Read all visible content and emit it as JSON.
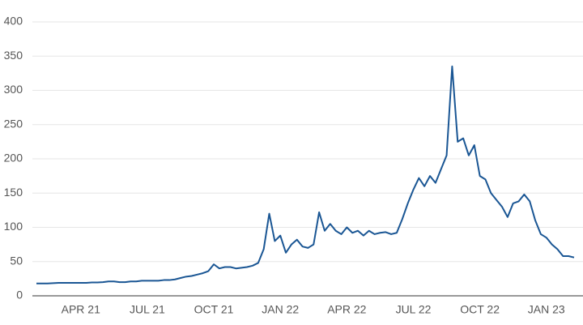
{
  "chart_data": {
    "type": "line",
    "categories": [
      null,
      null,
      null,
      null,
      null,
      null,
      null,
      null,
      "APR 21",
      null,
      null,
      null,
      null,
      null,
      null,
      null,
      null,
      null,
      null,
      null,
      "JUL 21",
      null,
      null,
      null,
      null,
      null,
      null,
      null,
      null,
      null,
      null,
      null,
      "OCT 21",
      null,
      null,
      null,
      null,
      null,
      null,
      null,
      null,
      null,
      null,
      null,
      "JAN 22",
      null,
      null,
      null,
      null,
      null,
      null,
      null,
      null,
      null,
      null,
      null,
      "APR 22",
      null,
      null,
      null,
      null,
      null,
      null,
      null,
      null,
      null,
      null,
      null,
      "JUL 22",
      null,
      null,
      null,
      null,
      null,
      null,
      null,
      null,
      null,
      null,
      null,
      "OCT 22",
      null,
      null,
      null,
      null,
      null,
      null,
      null,
      null,
      null,
      null,
      null,
      "JAN 23",
      null,
      null,
      null,
      null,
      null
    ],
    "values": [
      18,
      18,
      18,
      18.5,
      19,
      19,
      19,
      19,
      19,
      19,
      19.5,
      19.5,
      20,
      21,
      21,
      20,
      20,
      21,
      21,
      22,
      22,
      22,
      22,
      23,
      23,
      24,
      26,
      28,
      29,
      31,
      33,
      36,
      46,
      40,
      42,
      42,
      40,
      41,
      42,
      44,
      48,
      68,
      120,
      80,
      88,
      63,
      75,
      82,
      72,
      70,
      75,
      122,
      95,
      105,
      95,
      90,
      100,
      92,
      95,
      88,
      95,
      90,
      92,
      93,
      90,
      92,
      112,
      135,
      155,
      172,
      160,
      175,
      165,
      185,
      205,
      335,
      225,
      230,
      205,
      220,
      175,
      170,
      150,
      140,
      130,
      115,
      135,
      138,
      148,
      138,
      110,
      90,
      85,
      75,
      68,
      58,
      58,
      56
    ],
    "color": "#1a5694",
    "ylim": [
      0,
      400
    ],
    "yticks": [
      0,
      50,
      100,
      150,
      200,
      250,
      300,
      350,
      400
    ],
    "grid": true
  }
}
